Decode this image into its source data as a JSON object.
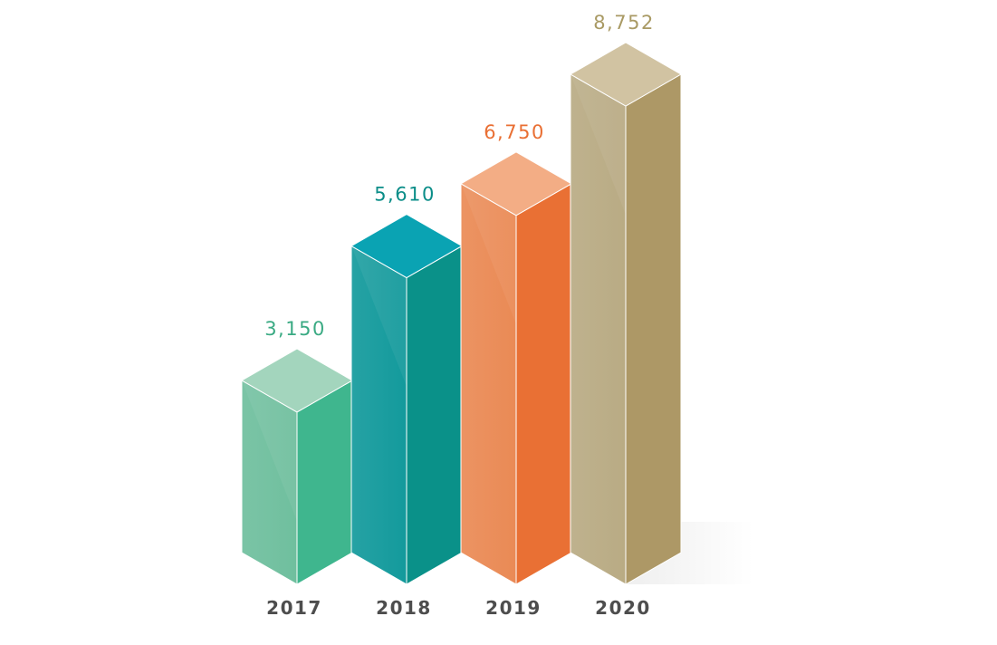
{
  "chart_data": {
    "type": "bar",
    "title": "",
    "xlabel": "",
    "ylabel": "",
    "categories": [
      "2017",
      "2018",
      "2019",
      "2020"
    ],
    "values": [
      3150,
      5610,
      6750,
      8752
    ],
    "data_labels": [
      "3,150",
      "5,610",
      "6,750",
      "8,752"
    ],
    "ylim": [
      0,
      8752
    ],
    "grid": false,
    "legend": "none",
    "style": "3d-isometric-columns",
    "colors": [
      {
        "label": "#3aaa83",
        "top": "#a3d5bd",
        "left": "#6fbf9e",
        "right": "#3fb68e"
      },
      {
        "label": "#0a8d88",
        "top": "#0aa3b3",
        "left": "#139a9c",
        "right": "#0a9189"
      },
      {
        "label": "#e96f33",
        "top": "#f3ad85",
        "left": "#ea8a55",
        "right": "#e97034"
      },
      {
        "label": "#a99a64",
        "top": "#d1c3a2",
        "left": "#b9ab84",
        "right": "#ad9866"
      }
    ]
  }
}
